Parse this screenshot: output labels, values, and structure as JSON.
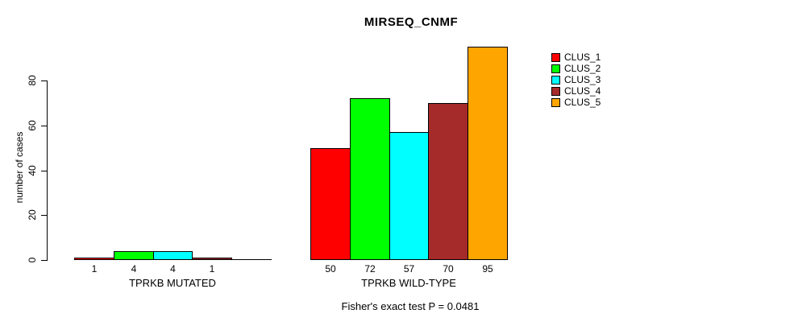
{
  "window": {
    "background_color": "#FFFFFF",
    "text_color": "#000000"
  },
  "chart_data": {
    "type": "bar",
    "title": "MIRSEQ_CNMF",
    "xlabel": "",
    "ylabel": "number of cases",
    "ylim": [
      0,
      95
    ],
    "yticks": [
      0,
      20,
      40,
      60,
      80
    ],
    "grid": false,
    "legend_position": "top-right",
    "clusters": [
      {
        "name": "CLUS_1",
        "color": "#FF0000"
      },
      {
        "name": "CLUS_2",
        "color": "#00FF00"
      },
      {
        "name": "CLUS_3",
        "color": "#00FFFF"
      },
      {
        "name": "CLUS_4",
        "color": "#A52A2A"
      },
      {
        "name": "CLUS_5",
        "color": "#FFA500"
      }
    ],
    "groups": [
      {
        "label": "TPRKB MUTATED",
        "values": [
          1,
          4,
          4,
          1,
          0
        ],
        "bar_labels": [
          "1",
          "4",
          "4",
          "1",
          ""
        ]
      },
      {
        "label": "TPRKB WILD-TYPE",
        "values": [
          50,
          72,
          57,
          70,
          95
        ],
        "bar_labels": [
          "50",
          "72",
          "57",
          "70",
          "95"
        ]
      }
    ],
    "annotation": "Fisher's exact test P = 0.0481"
  }
}
